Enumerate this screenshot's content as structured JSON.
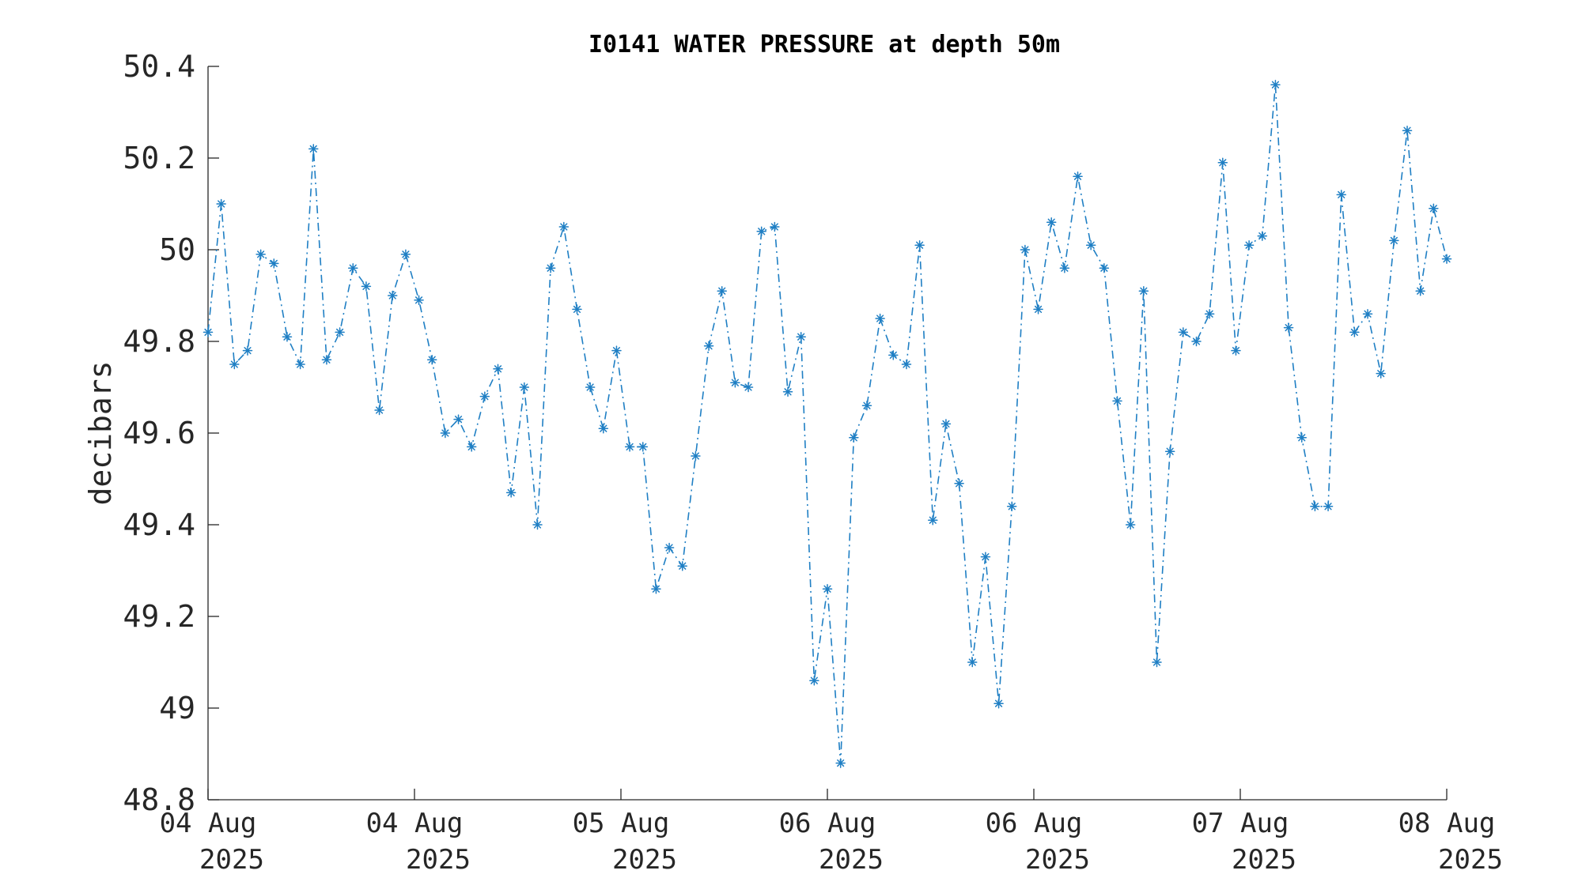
{
  "colors": {
    "series": "#1f7fc4",
    "axis": "#262626",
    "background": "#ffffff"
  },
  "chart_data": {
    "type": "line",
    "title": "I0141 WATER PRESSURE at depth 50m",
    "xlabel": "",
    "ylabel": "decibars",
    "ylim": [
      48.8,
      50.4
    ],
    "y_ticks": [
      48.8,
      49,
      49.2,
      49.4,
      49.6,
      49.8,
      50,
      50.2,
      50.4
    ],
    "y_tick_labels": [
      "48.8",
      "49",
      "49.2",
      "49.4",
      "49.6",
      "49.8",
      "50",
      "50.2",
      "50.4"
    ],
    "x_ticks": [
      {
        "line1": "04 Aug",
        "line2": "2025"
      },
      {
        "line1": "04 Aug",
        "line2": "2025"
      },
      {
        "line1": "05 Aug",
        "line2": "2025"
      },
      {
        "line1": "06 Aug",
        "line2": "2025"
      },
      {
        "line1": "06 Aug",
        "line2": "2025"
      },
      {
        "line1": "07 Aug",
        "line2": "2025"
      },
      {
        "line1": "08 Aug",
        "line2": "2025"
      }
    ],
    "grid": false,
    "legend": "none",
    "marker": "asterisk",
    "line_style": "dash-dot",
    "series": [
      {
        "values": [
          49.82,
          50.1,
          49.75,
          49.78,
          49.99,
          49.97,
          49.81,
          49.75,
          50.22,
          49.76,
          49.82,
          49.96,
          49.92,
          49.65,
          49.9,
          49.99,
          49.89,
          49.76,
          49.6,
          49.63,
          49.57,
          49.68,
          49.74,
          49.47,
          49.7,
          49.4,
          49.96,
          50.05,
          49.87,
          49.7,
          49.61,
          49.78,
          49.57,
          49.57,
          49.26,
          49.35,
          49.31,
          49.55,
          49.79,
          49.91,
          49.71,
          49.7,
          50.04,
          50.05,
          49.69,
          49.81,
          49.06,
          49.26,
          48.88,
          49.59,
          49.66,
          49.85,
          49.77,
          49.75,
          50.01,
          49.41,
          49.62,
          49.49,
          49.1,
          49.33,
          49.01,
          49.44,
          50.0,
          49.87,
          50.06,
          49.96,
          50.16,
          50.01,
          49.96,
          49.67,
          49.4,
          49.91,
          49.1,
          49.56,
          49.82,
          49.8,
          49.86,
          50.19,
          49.78,
          50.01,
          50.03,
          50.36,
          49.83,
          49.59,
          49.44,
          49.44,
          50.12,
          49.82,
          49.86,
          49.73,
          50.02,
          50.26,
          49.91,
          50.09,
          49.98
        ]
      }
    ]
  }
}
